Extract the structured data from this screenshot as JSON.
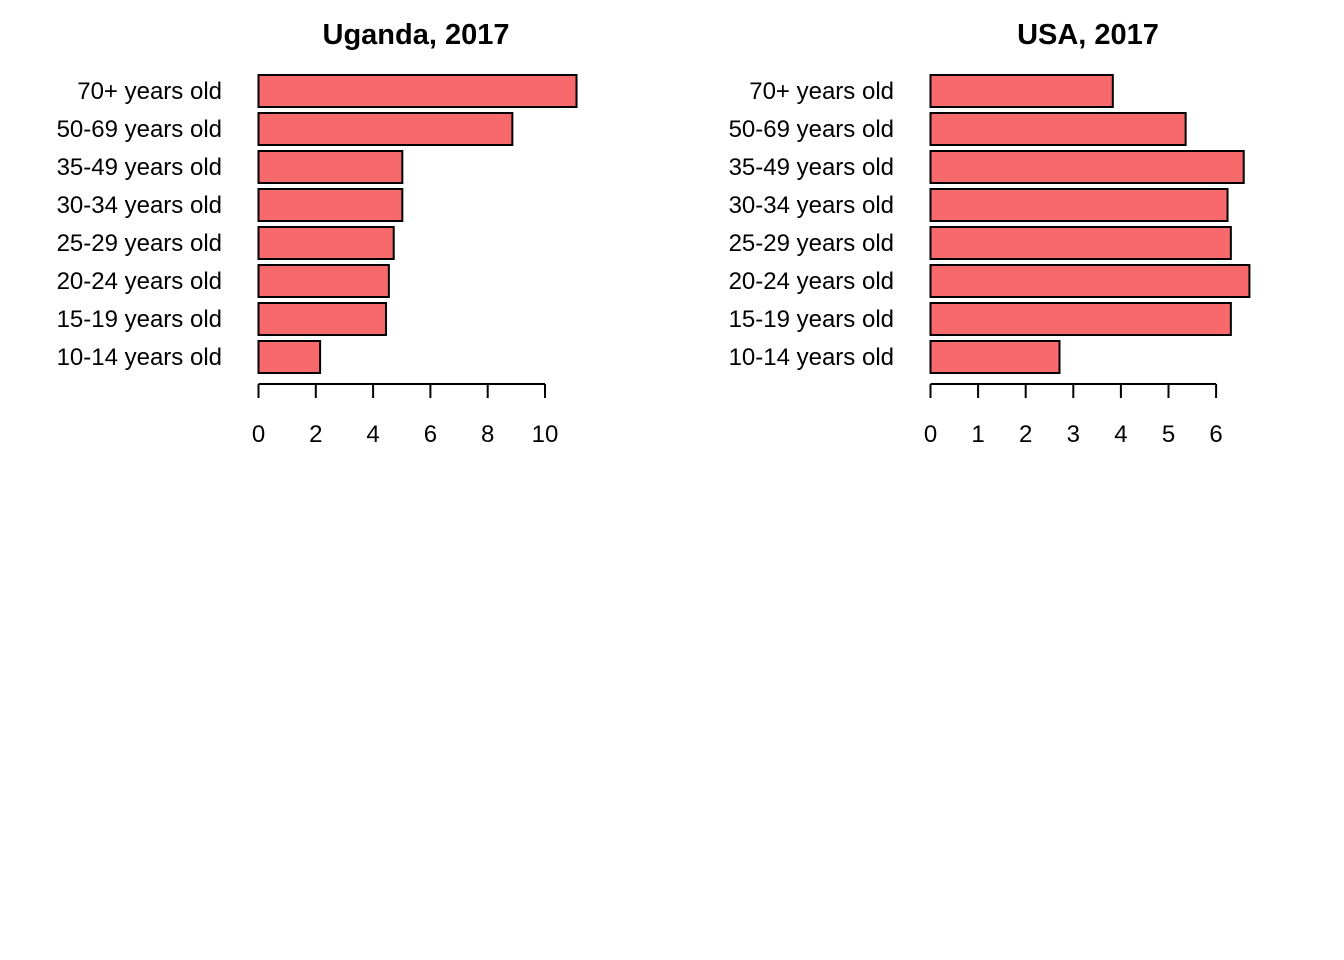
{
  "chart_data": [
    {
      "type": "bar",
      "orientation": "horizontal",
      "title": "Uganda, 2017",
      "xlabel": "",
      "ylabel": "",
      "categories": [
        "10-14 years old",
        "15-19 years old",
        "20-24 years old",
        "25-29 years old",
        "30-34 years old",
        "35-49 years old",
        "50-69 years old",
        "70+ years old"
      ],
      "values": [
        2.15,
        4.45,
        4.55,
        4.72,
        5.02,
        5.02,
        8.86,
        11.1
      ],
      "xticks": [
        0,
        2,
        4,
        6,
        8,
        10
      ],
      "xlim": [
        0,
        11.1
      ],
      "bar_color": "#f8696b",
      "grid": false,
      "legend": "none"
    },
    {
      "type": "bar",
      "orientation": "horizontal",
      "title": "USA, 2017",
      "xlabel": "",
      "ylabel": "",
      "categories": [
        "10-14 years old",
        "15-19 years old",
        "20-24 years old",
        "25-29 years old",
        "30-34 years old",
        "35-49 years old",
        "50-69 years old",
        "70+ years old"
      ],
      "values": [
        2.71,
        6.31,
        6.7,
        6.31,
        6.24,
        6.58,
        5.36,
        3.83
      ],
      "xticks": [
        0,
        1,
        2,
        3,
        4,
        5,
        6
      ],
      "xlim": [
        0,
        6.7
      ],
      "bar_color": "#f8696b",
      "grid": false,
      "legend": "none"
    }
  ]
}
